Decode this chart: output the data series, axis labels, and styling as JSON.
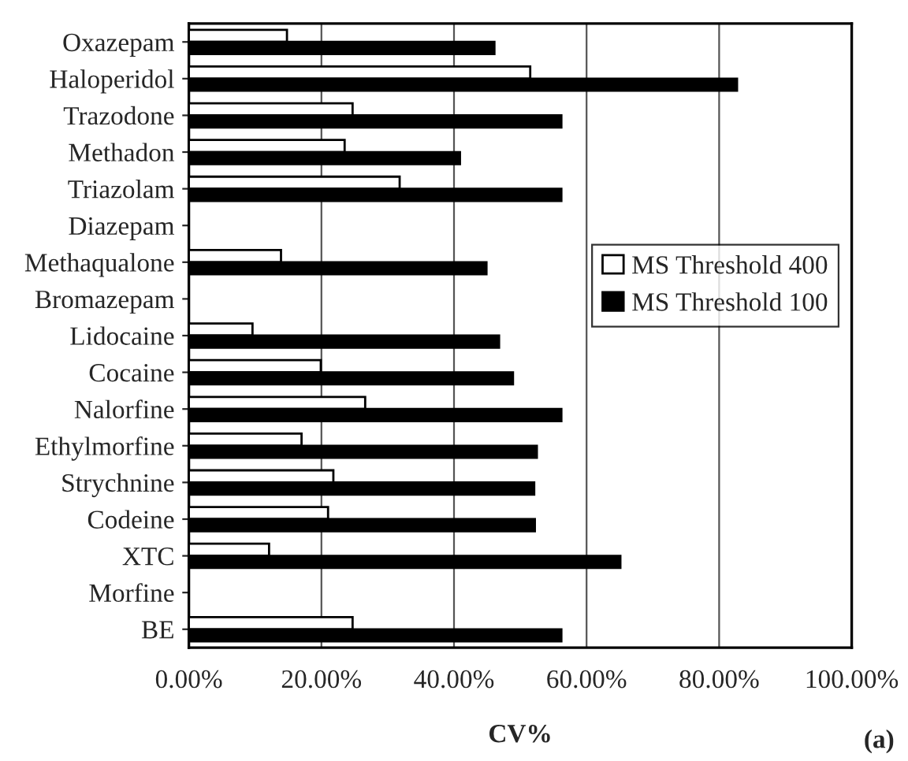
{
  "chart_data": {
    "type": "bar",
    "orientation": "horizontal",
    "xlabel": "CV%",
    "categories": [
      "Oxazepam",
      "Haloperidol",
      "Trazodone",
      "Methadon",
      "Triazolam",
      "Diazepam",
      "Methaqualone",
      "Bromazepam",
      "Lidocaine",
      "Cocaine",
      "Nalorfine",
      "Ethylmorfine",
      "Strychnine",
      "Codeine",
      "XTC",
      "Morfine",
      "BE"
    ],
    "series": [
      {
        "name": "MS Threshold 400",
        "color": "#ffffff",
        "values": [
          14.8,
          51.5,
          24.7,
          23.5,
          31.8,
          null,
          13.9,
          null,
          9.6,
          19.9,
          26.6,
          17.0,
          21.8,
          21.0,
          12.1,
          null,
          24.7
        ]
      },
      {
        "name": "MS Threshold 100",
        "color": "#000000",
        "values": [
          46.1,
          82.7,
          56.2,
          40.9,
          56.2,
          null,
          44.9,
          null,
          46.8,
          48.9,
          56.2,
          52.5,
          52.1,
          52.2,
          65.1,
          null,
          56.2
        ]
      }
    ],
    "xlim": [
      0,
      100
    ],
    "xticks": [
      {
        "value": 0,
        "label": "0.00%"
      },
      {
        "value": 20,
        "label": "20.00%"
      },
      {
        "value": 40,
        "label": "40.00%"
      },
      {
        "value": 60,
        "label": "60.00%"
      },
      {
        "value": 80,
        "label": "80.00%"
      },
      {
        "value": 100,
        "label": "100.00%"
      }
    ],
    "grid": "x",
    "legend": "right",
    "annotations": [
      "(a)"
    ]
  }
}
